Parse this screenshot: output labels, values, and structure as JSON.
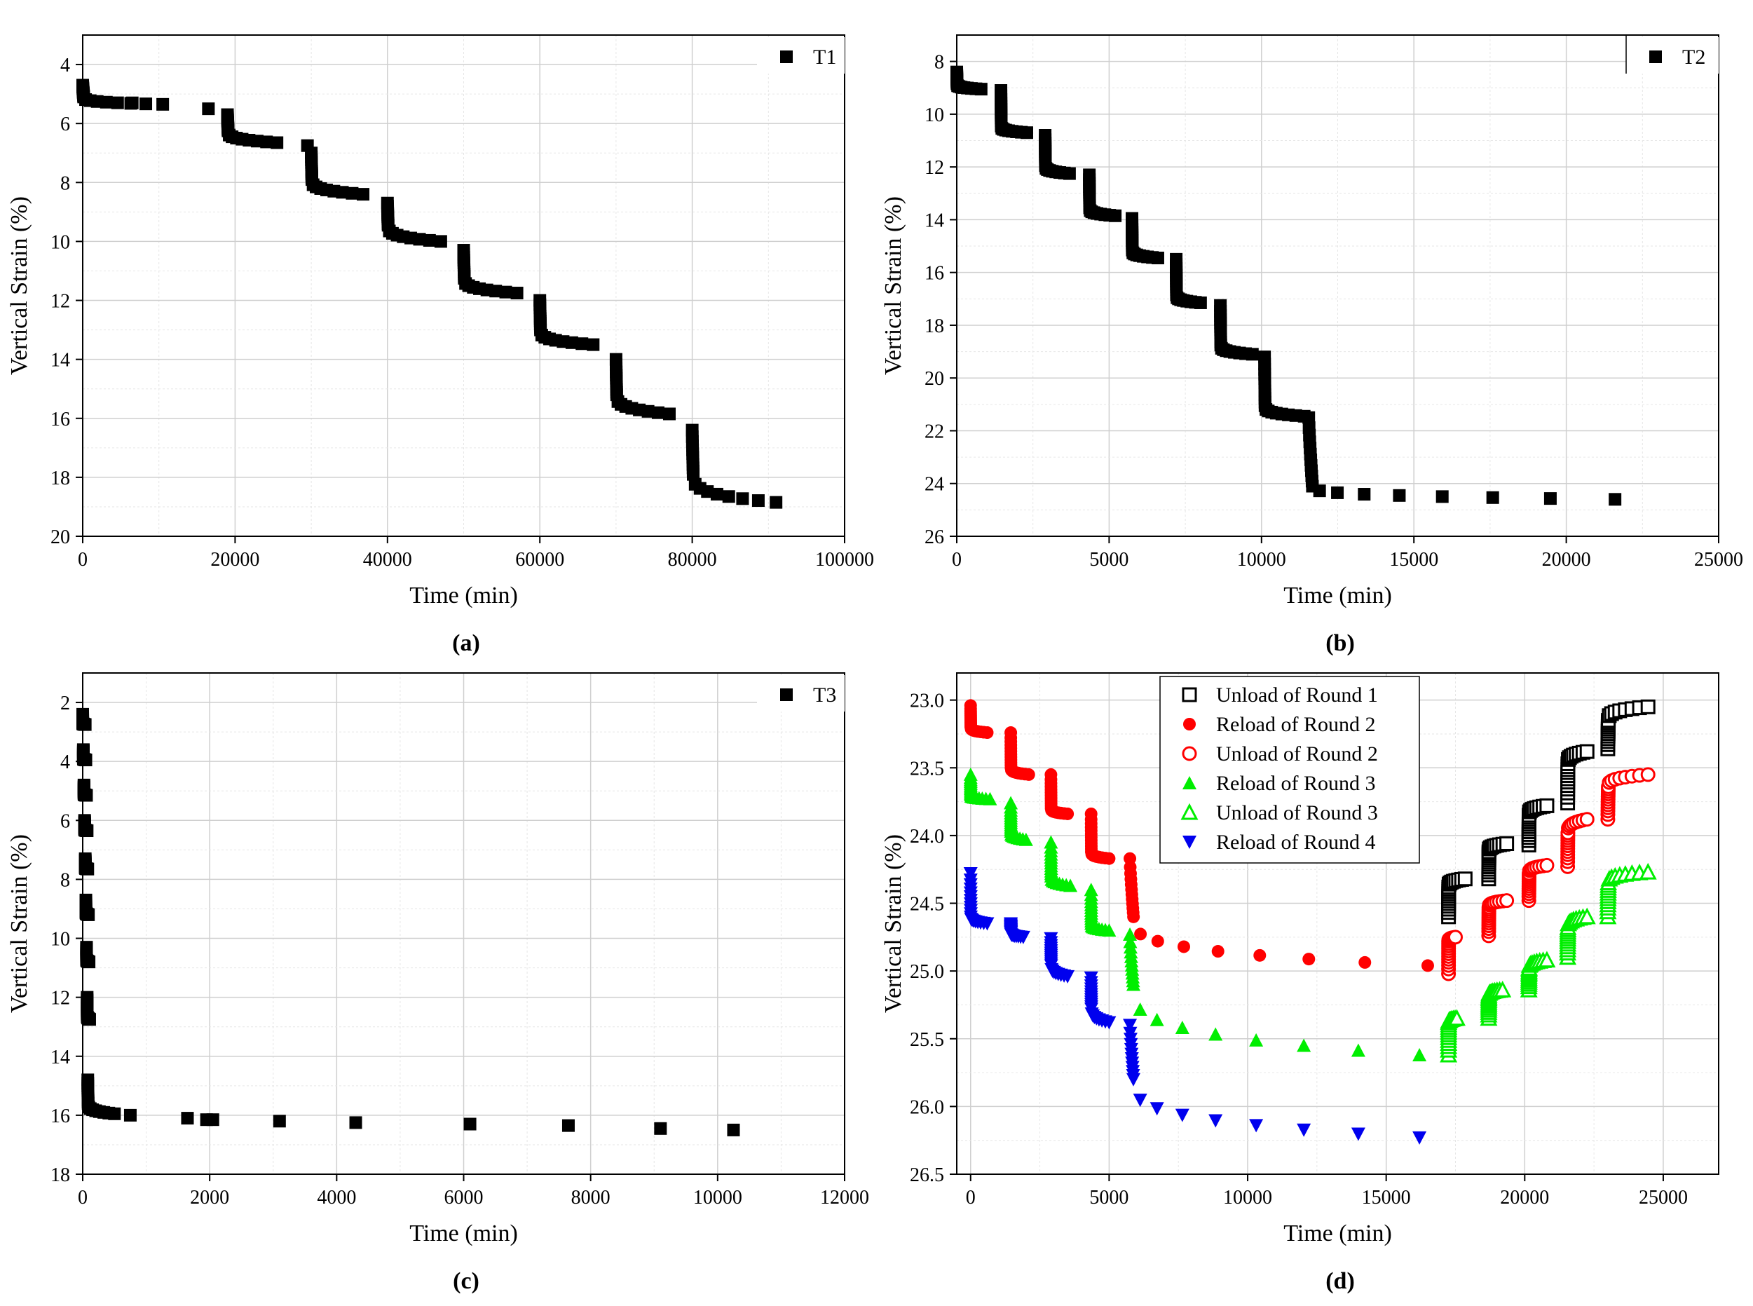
{
  "captions": [
    "(a)",
    "(b)",
    "(c)",
    "(d)"
  ],
  "chart_data": [
    {
      "type": "scatter",
      "xlabel": "Time (min)",
      "ylabel": "Vertical Strain (%)",
      "xlim": [
        0,
        100000
      ],
      "ylim": [
        20,
        3
      ],
      "y_inverted": true,
      "xticks": [
        0,
        20000,
        40000,
        60000,
        80000,
        100000
      ],
      "yticks": [
        4,
        6,
        8,
        10,
        12,
        14,
        16,
        18,
        20
      ],
      "grid": true,
      "legend_position": "top-right",
      "series": [
        {
          "name": "T1",
          "marker": "square-filled",
          "color": "#000000",
          "stages": [
            {
              "t0": 0,
              "s0": 4.7,
              "s1": 5.1,
              "sEnd": 5.35,
              "tEnd": 10500
            },
            {
              "t0": 19000,
              "s0": 5.7,
              "s1": 6.25,
              "sEnd": 6.65,
              "tEnd": 25500
            },
            {
              "t0": 30000,
              "s0": 7.0,
              "s1": 7.9,
              "sEnd": 8.4,
              "tEnd": 36800
            },
            {
              "t0": 40000,
              "s0": 8.7,
              "s1": 9.45,
              "sEnd": 10.0,
              "tEnd": 47000
            },
            {
              "t0": 50000,
              "s0": 10.3,
              "s1": 11.25,
              "sEnd": 11.75,
              "tEnd": 57000
            },
            {
              "t0": 60000,
              "s0": 12.0,
              "s1": 13.0,
              "sEnd": 13.5,
              "tEnd": 67000
            },
            {
              "t0": 70000,
              "s0": 14.0,
              "s1": 15.2,
              "sEnd": 15.85,
              "tEnd": 77000
            },
            {
              "t0": 80000,
              "s0": 16.4,
              "s1": 17.9,
              "sEnd": 18.85,
              "tEnd": 91000
            }
          ],
          "extra_points": [
            [
              6500,
              5.3
            ],
            [
              16500,
              5.5
            ],
            [
              29500,
              6.75
            ]
          ]
        }
      ]
    },
    {
      "type": "scatter",
      "xlabel": "Time (min)",
      "ylabel": "Vertical Strain (%)",
      "xlim": [
        0,
        25000
      ],
      "ylim": [
        26,
        7
      ],
      "y_inverted": true,
      "xticks": [
        0,
        5000,
        10000,
        15000,
        20000,
        25000
      ],
      "yticks": [
        8,
        10,
        12,
        14,
        16,
        18,
        20,
        22,
        24,
        26
      ],
      "grid": true,
      "legend_position": "top-right",
      "series": [
        {
          "name": "T2",
          "marker": "square-filled",
          "color": "#000000",
          "stages": [
            {
              "t0": 0,
              "s0": 8.4,
              "s1": 8.85,
              "sEnd": 9.05,
              "tEnd": 800
            },
            {
              "t0": 1450,
              "s0": 9.1,
              "s1": 10.45,
              "sEnd": 10.7,
              "tEnd": 2300
            },
            {
              "t0": 2900,
              "s0": 10.8,
              "s1": 11.95,
              "sEnd": 12.25,
              "tEnd": 3700
            },
            {
              "t0": 4350,
              "s0": 12.3,
              "s1": 13.55,
              "sEnd": 13.85,
              "tEnd": 5200
            },
            {
              "t0": 5750,
              "s0": 13.95,
              "s1": 15.15,
              "sEnd": 15.45,
              "tEnd": 6600
            },
            {
              "t0": 7200,
              "s0": 15.5,
              "s1": 16.85,
              "sEnd": 17.15,
              "tEnd": 8000
            },
            {
              "t0": 8650,
              "s0": 17.25,
              "s1": 18.75,
              "sEnd": 19.1,
              "tEnd": 9700
            },
            {
              "t0": 10100,
              "s0": 19.2,
              "s1": 21.05,
              "sEnd": 21.45,
              "tEnd": 11400
            },
            {
              "t0": 11550,
              "s0": 21.5,
              "s1": 24.1,
              "sEnd": 24.6,
              "tEnd": 21600
            }
          ],
          "extra_points": []
        }
      ]
    },
    {
      "type": "scatter",
      "xlabel": "Time (min)",
      "ylabel": "Vertical Strain (%)",
      "xlim": [
        0,
        12000
      ],
      "ylim": [
        18,
        1
      ],
      "y_inverted": true,
      "xticks": [
        0,
        2000,
        4000,
        6000,
        8000,
        10000,
        12000
      ],
      "yticks": [
        2,
        4,
        6,
        8,
        10,
        12,
        14,
        16,
        18
      ],
      "grid": true,
      "legend_position": "top-right",
      "series": [
        {
          "name": "T3",
          "marker": "square-filled",
          "color": "#000000",
          "stages": [
            {
              "t0": 0,
              "s0": 2.4,
              "s1": 2.7,
              "sEnd": 2.75,
              "tEnd": 40
            },
            {
              "t0": 10,
              "s0": 3.6,
              "s1": 3.9,
              "sEnd": 3.95,
              "tEnd": 50
            },
            {
              "t0": 20,
              "s0": 4.8,
              "s1": 5.1,
              "sEnd": 5.15,
              "tEnd": 60
            },
            {
              "t0": 30,
              "s0": 6.0,
              "s1": 6.3,
              "sEnd": 6.35,
              "tEnd": 70
            },
            {
              "t0": 40,
              "s0": 7.3,
              "s1": 7.6,
              "sEnd": 7.65,
              "tEnd": 80
            },
            {
              "t0": 50,
              "s0": 8.7,
              "s1": 9.1,
              "sEnd": 9.2,
              "tEnd": 90
            },
            {
              "t0": 60,
              "s0": 10.3,
              "s1": 10.7,
              "sEnd": 10.8,
              "tEnd": 100
            },
            {
              "t0": 70,
              "s0": 12.0,
              "s1": 12.6,
              "sEnd": 12.75,
              "tEnd": 110
            },
            {
              "t0": 80,
              "s0": 14.8,
              "s1": 15.6,
              "sEnd": 15.95,
              "tEnd": 500
            }
          ],
          "extra_points": [
            [
              750,
              16.0
            ],
            [
              1650,
              16.1
            ],
            [
              1950,
              16.15
            ],
            [
              2050,
              16.15
            ],
            [
              3100,
              16.2
            ],
            [
              4300,
              16.25
            ],
            [
              6100,
              16.3
            ],
            [
              7650,
              16.35
            ],
            [
              9100,
              16.45
            ],
            [
              10250,
              16.5
            ]
          ]
        }
      ]
    },
    {
      "type": "scatter",
      "xlabel": "Time (min)",
      "ylabel": "Vertical Strain (%)",
      "xlim": [
        -500,
        27000
      ],
      "ylim": [
        26.5,
        22.8
      ],
      "y_inverted": true,
      "xticks": [
        0,
        5000,
        10000,
        15000,
        20000,
        25000
      ],
      "yticks": [
        23.0,
        23.5,
        24.0,
        24.5,
        25.0,
        25.5,
        26.0,
        26.5
      ],
      "ytick_labels": [
        "23.0",
        "23.5",
        "24.0",
        "24.5",
        "25.0",
        "25.5",
        "26.0",
        "26.5"
      ],
      "grid": true,
      "legend_position": "top-center",
      "series": [
        {
          "name": "Unload of Round 1",
          "marker": "square-open",
          "color": "#000000",
          "stages": [
            {
              "t0": 17250,
              "s0": 24.6,
              "s1": 24.38,
              "sEnd": 24.32,
              "tEnd": 17850
            },
            {
              "t0": 18700,
              "s0": 24.32,
              "s1": 24.12,
              "sEnd": 24.06,
              "tEnd": 19350
            },
            {
              "t0": 20150,
              "s0": 24.07,
              "s1": 23.85,
              "sEnd": 23.78,
              "tEnd": 20800
            },
            {
              "t0": 21550,
              "s0": 23.76,
              "s1": 23.47,
              "sEnd": 23.38,
              "tEnd": 22250
            },
            {
              "t0": 23000,
              "s0": 23.36,
              "s1": 23.15,
              "sEnd": 23.05,
              "tEnd": 24450
            }
          ],
          "extra_points": []
        },
        {
          "name": "Reload of Round 2",
          "marker": "circle-filled",
          "color": "#ff0000",
          "stages": [
            {
              "t0": 0,
              "s0": 23.04,
              "s1": 23.2,
              "sEnd": 23.24,
              "tEnd": 600
            },
            {
              "t0": 1450,
              "s0": 23.24,
              "s1": 23.5,
              "sEnd": 23.55,
              "tEnd": 2100
            },
            {
              "t0": 2900,
              "s0": 23.55,
              "s1": 23.8,
              "sEnd": 23.84,
              "tEnd": 3500
            },
            {
              "t0": 4350,
              "s0": 23.84,
              "s1": 24.12,
              "sEnd": 24.17,
              "tEnd": 5000
            },
            {
              "t0": 5750,
              "s0": 24.17,
              "s1": 24.6,
              "sEnd": 24.96,
              "tEnd": 16500
            }
          ],
          "extra_points": []
        },
        {
          "name": "Unload of Round 2",
          "marker": "circle-open",
          "color": "#ff0000",
          "stages": [
            {
              "t0": 17250,
              "s0": 25.02,
              "s1": 24.78,
              "sEnd": 24.75,
              "tEnd": 17500
            },
            {
              "t0": 18700,
              "s0": 24.74,
              "s1": 24.53,
              "sEnd": 24.48,
              "tEnd": 19350
            },
            {
              "t0": 20150,
              "s0": 24.48,
              "s1": 24.28,
              "sEnd": 24.22,
              "tEnd": 20800
            },
            {
              "t0": 21550,
              "s0": 24.23,
              "s1": 23.98,
              "sEnd": 23.88,
              "tEnd": 22250
            },
            {
              "t0": 23000,
              "s0": 23.88,
              "s1": 23.64,
              "sEnd": 23.55,
              "tEnd": 24450
            }
          ],
          "extra_points": []
        },
        {
          "name": "Reload of Round 3",
          "marker": "triangle-up-filled",
          "color": "#00ee00",
          "stages": [
            {
              "t0": 0,
              "s0": 23.55,
              "s1": 23.7,
              "sEnd": 23.73,
              "tEnd": 700
            },
            {
              "t0": 1450,
              "s0": 23.76,
              "s1": 23.97,
              "sEnd": 24.03,
              "tEnd": 2000
            },
            {
              "t0": 2900,
              "s0": 24.05,
              "s1": 24.3,
              "sEnd": 24.37,
              "tEnd": 3600
            },
            {
              "t0": 4350,
              "s0": 24.4,
              "s1": 24.65,
              "sEnd": 24.7,
              "tEnd": 5000
            },
            {
              "t0": 5750,
              "s0": 24.73,
              "s1": 25.1,
              "sEnd": 25.62,
              "tEnd": 16200
            }
          ],
          "extra_points": []
        },
        {
          "name": "Unload of Round 3",
          "marker": "triangle-up-open",
          "color": "#00ee00",
          "stages": [
            {
              "t0": 17250,
              "s0": 25.62,
              "s1": 25.38,
              "sEnd": 25.35,
              "tEnd": 17550
            },
            {
              "t0": 18700,
              "s0": 25.35,
              "s1": 25.18,
              "sEnd": 25.14,
              "tEnd": 19200
            },
            {
              "t0": 20150,
              "s0": 25.14,
              "s1": 24.98,
              "sEnd": 24.92,
              "tEnd": 20800
            },
            {
              "t0": 21550,
              "s0": 24.9,
              "s1": 24.68,
              "sEnd": 24.6,
              "tEnd": 22250
            },
            {
              "t0": 23000,
              "s0": 24.6,
              "s1": 24.35,
              "sEnd": 24.27,
              "tEnd": 24450
            }
          ],
          "extra_points": []
        },
        {
          "name": "Reload of Round 4",
          "marker": "triangle-down-filled",
          "color": "#0000ee",
          "stages": [
            {
              "t0": 0,
              "s0": 24.28,
              "s1": 24.6,
              "sEnd": 24.65,
              "tEnd": 600
            },
            {
              "t0": 1450,
              "s0": 24.65,
              "s1": 24.72,
              "sEnd": 24.75,
              "tEnd": 1900
            },
            {
              "t0": 2900,
              "s0": 24.76,
              "s1": 24.96,
              "sEnd": 25.04,
              "tEnd": 3500
            },
            {
              "t0": 4350,
              "s0": 25.05,
              "s1": 25.28,
              "sEnd": 25.38,
              "tEnd": 5000
            },
            {
              "t0": 5750,
              "s0": 25.4,
              "s1": 25.8,
              "sEnd": 26.23,
              "tEnd": 16200
            }
          ],
          "extra_points": []
        }
      ]
    }
  ]
}
